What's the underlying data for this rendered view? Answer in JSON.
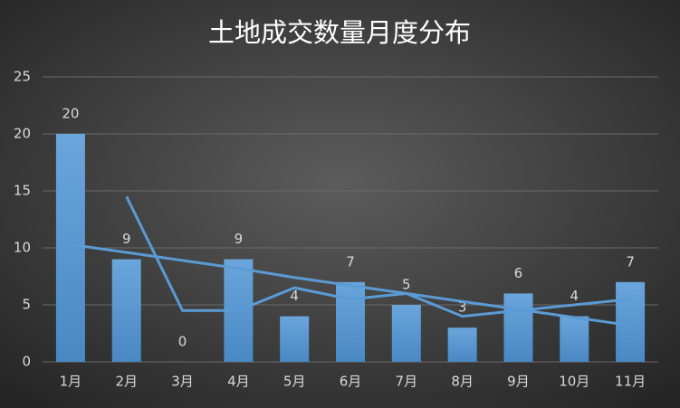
{
  "chart_data": {
    "type": "bar",
    "title": "土地成交数量月度分布",
    "categories": [
      "1月",
      "2月",
      "3月",
      "4月",
      "5月",
      "6月",
      "7月",
      "8月",
      "9月",
      "10月",
      "11月"
    ],
    "series": [
      {
        "type": "bar",
        "color": "#5b9bd5",
        "values": [
          20,
          9,
          0,
          9,
          4,
          7,
          5,
          3,
          6,
          4,
          7
        ]
      },
      {
        "type": "line",
        "color": "#5b9bd5",
        "values": [
          null,
          14.5,
          4.5,
          4.5,
          6.5,
          5.5,
          6,
          4,
          4.5,
          5,
          5.5
        ]
      },
      {
        "type": "line",
        "color": "#5b9bd5",
        "values": [
          10.3,
          9.6,
          8.9,
          8.2,
          7.4,
          6.7,
          6.0,
          5.3,
          4.6,
          3.9,
          3.2
        ]
      }
    ],
    "ylim": [
      0,
      25
    ],
    "yticks": [
      0,
      5,
      10,
      15,
      20,
      25
    ],
    "grid": true
  }
}
